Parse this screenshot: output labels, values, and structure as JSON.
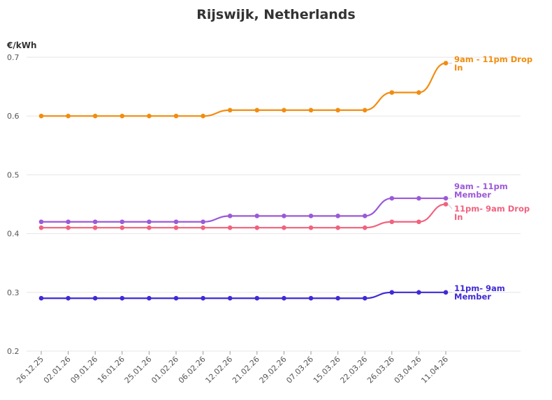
{
  "chart_data": {
    "type": "line",
    "title": "Rijswijk, Netherlands",
    "ylabel": "€/kWh",
    "xlabel": "",
    "ylim": [
      0.2,
      0.7
    ],
    "yticks": [
      "0.2",
      "0.3",
      "0.4",
      "0.5",
      "0.6",
      "0.7"
    ],
    "grid": true,
    "legend": "direct labels at right end of lines",
    "categories": [
      "26.12.25",
      "02.01.26",
      "09.01.26",
      "16.01.26",
      "25.01.26",
      "01.02.26",
      "06.02.26",
      "12.02.26",
      "21.02.26",
      "29.02.26",
      "07.03.26",
      "15.03.26",
      "22.03.26",
      "26.03.26",
      "03.04.26",
      "11.04.26"
    ],
    "series": [
      {
        "name": "9am - 11pm Drop In",
        "label_lines": [
          "9am - 11pm Drop",
          "In"
        ],
        "color": "#f28c0f",
        "values": [
          0.6,
          0.6,
          0.6,
          0.6,
          0.6,
          0.6,
          0.6,
          0.61,
          0.61,
          0.61,
          0.61,
          0.61,
          0.61,
          0.64,
          0.64,
          0.69
        ]
      },
      {
        "name": "9am - 11pm Member",
        "label_lines": [
          "9am - 11pm",
          "Member"
        ],
        "color": "#9b59d8",
        "values": [
          0.42,
          0.42,
          0.42,
          0.42,
          0.42,
          0.42,
          0.42,
          0.43,
          0.43,
          0.43,
          0.43,
          0.43,
          0.43,
          0.46,
          0.46,
          0.46
        ]
      },
      {
        "name": "11pm- 9am Drop In",
        "label_lines": [
          "11pm- 9am Drop",
          "In"
        ],
        "color": "#f0627e",
        "values": [
          0.41,
          0.41,
          0.41,
          0.41,
          0.41,
          0.41,
          0.41,
          0.41,
          0.41,
          0.41,
          0.41,
          0.41,
          0.41,
          0.42,
          0.42,
          0.45
        ]
      },
      {
        "name": "11pm- 9am Member",
        "label_lines": [
          "11pm- 9am",
          "Member"
        ],
        "color": "#3f2ad6",
        "values": [
          0.29,
          0.29,
          0.29,
          0.29,
          0.29,
          0.29,
          0.29,
          0.29,
          0.29,
          0.29,
          0.29,
          0.29,
          0.29,
          0.3,
          0.3,
          0.3
        ]
      }
    ]
  }
}
